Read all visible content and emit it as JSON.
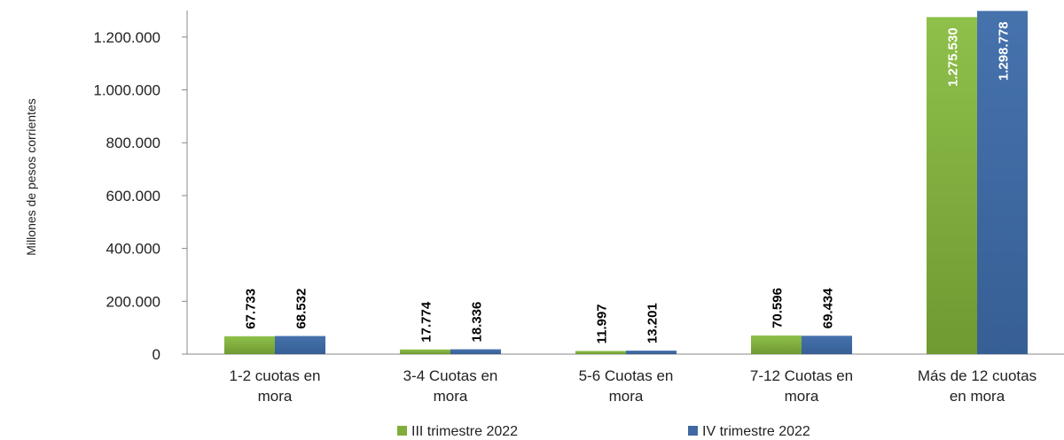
{
  "chart_data": {
    "type": "bar",
    "ylabel": "Millones de pesos corrientes",
    "ylim": [
      0,
      1300000
    ],
    "yticks": [
      0,
      200000,
      400000,
      600000,
      800000,
      1000000,
      1200000
    ],
    "ytick_labels": [
      "0",
      "200.000",
      "400.000",
      "600.000",
      "800.000",
      "1.000.000",
      "1.200.000"
    ],
    "categories": [
      [
        "1-2 cuotas en",
        "mora"
      ],
      [
        "3-4 Cuotas en",
        "mora"
      ],
      [
        "5-6 Cuotas en",
        "mora"
      ],
      [
        "7-12 Cuotas en",
        "mora"
      ],
      [
        "Más de 12 cuotas",
        "en mora"
      ]
    ],
    "series": [
      {
        "name": "III trimestre 2022",
        "color": "#7fae3d",
        "values": [
          67733,
          17774,
          11997,
          70596,
          1275530
        ],
        "labels": [
          "67.733",
          "17.774",
          "11.997",
          "70.596",
          "1.275.530"
        ]
      },
      {
        "name": "IV trimestre 2022",
        "color": "#3f69a3",
        "values": [
          68532,
          18336,
          13201,
          69434,
          1298778
        ],
        "labels": [
          "68.532",
          "18.336",
          "13.201",
          "69.434",
          "1.298.778"
        ]
      }
    ],
    "legend_position": "bottom",
    "grid": false
  }
}
